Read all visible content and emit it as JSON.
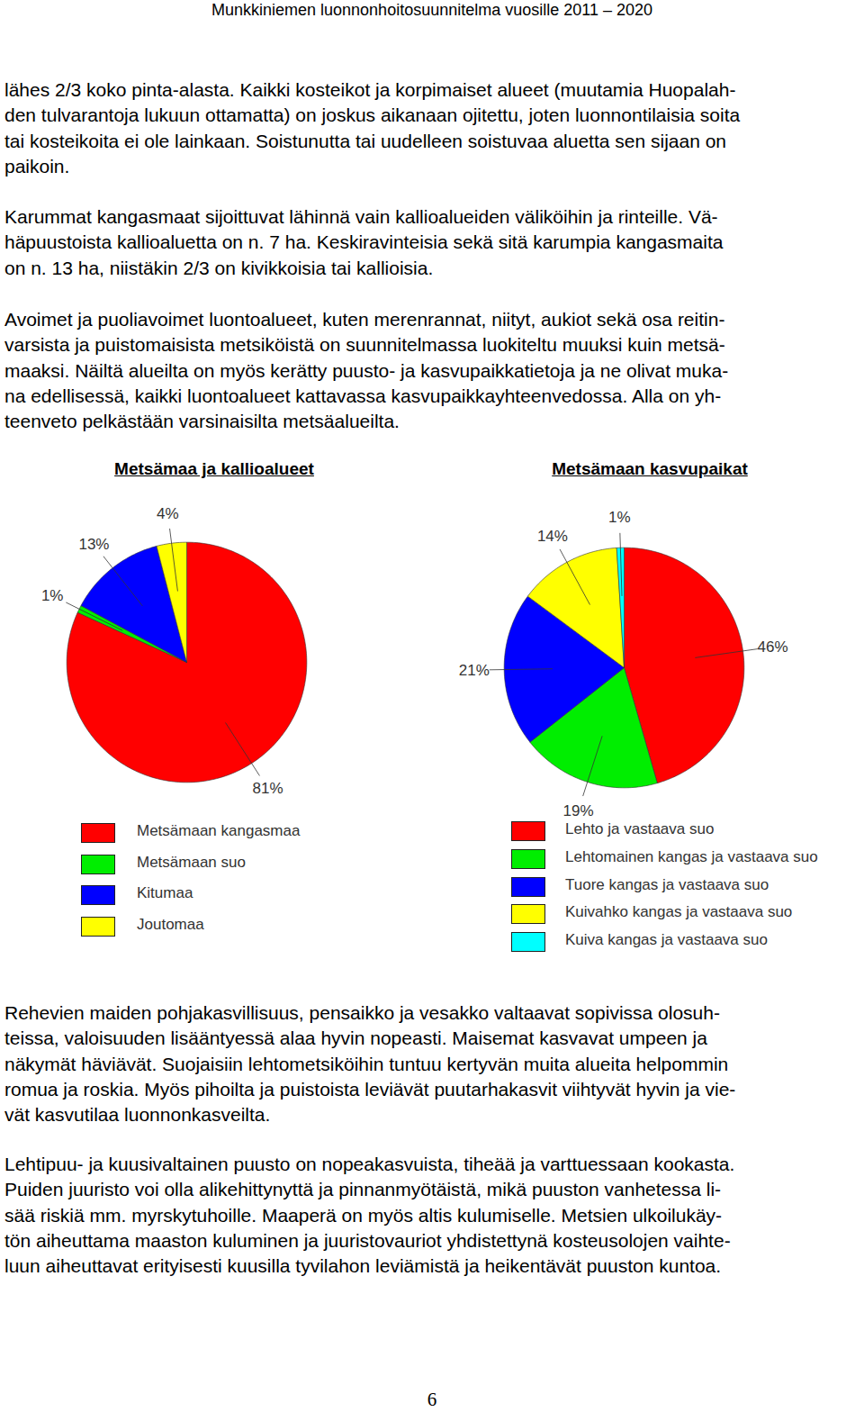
{
  "header": "Munkkiniemen luonnonhoitosuunnitelma vuosille 2011 – 2020",
  "body_top": [
    [
      "lähes 2/3 koko pinta-alasta. Kaikki kosteikot ja korpimaiset alueet (muutamia Huopalah-",
      "den tulvarantoja lukuun ottamatta) on joskus aikanaan ojitettu, joten luonnontilaisia soita",
      "tai kosteikoita ei ole lainkaan. Soistunutta tai uudelleen soistuvaa aluetta sen sijaan on",
      "paikoin."
    ],
    [
      "Karummat kangasmaat sijoittuvat lähinnä vain kallioalueiden väliköihin ja rinteille. Vä-",
      "häpuustoista kallioaluetta on n. 7 ha. Keskiravinteisia sekä sitä karumpia kangasmaita",
      "on n. 13 ha, niistäkin 2/3 on kivikkoisia tai kallioisia."
    ],
    [
      "Avoimet ja puoliavoimet luontoalueet, kuten merenrannat, niityt, aukiot sekä osa reitin-",
      "varsista ja puistomaisista metsiköistä on suunnitelmassa luokiteltu muuksi kuin metsä-",
      "maaksi. Näiltä alueilta on myös kerätty puusto- ja kasvupaikkatietoja ja ne olivat muka-",
      "na edellisessä, kaikki luontoalueet kattavassa kasvupaikkayhteenvedossa. Alla on yh-",
      "teenveto pelkästään varsinaisilta metsäalueilta."
    ]
  ],
  "chart_data": [
    {
      "type": "pie",
      "title": "Metsämaa ja kallioalueet",
      "categories": [
        "Metsämaan kangasmaa",
        "Metsämaan suo",
        "Kitumaa",
        "Joutomaa"
      ],
      "values": [
        81,
        1,
        13,
        4
      ],
      "value_labels": [
        "81%",
        "1%",
        "13%",
        "4%"
      ],
      "colors": [
        "#ff0000",
        "#00ee00",
        "#0000ff",
        "#ffff00"
      ],
      "data_labels": true,
      "legend": "bottom"
    },
    {
      "type": "pie",
      "title": "Metsämaan kasvupaikat",
      "categories": [
        "Lehto ja vastaava suo",
        "Lehtomainen kangas ja vastaava suo",
        "Tuore kangas ja vastaava suo",
        "Kuivahko kangas ja vastaava suo",
        "Kuiva kangas ja vastaava suo"
      ],
      "values": [
        46,
        19,
        21,
        14,
        1
      ],
      "value_labels": [
        "46%",
        "19%",
        "21%",
        "14%",
        "1%"
      ],
      "colors": [
        "#ff0000",
        "#00ee00",
        "#0000ff",
        "#ffff00",
        "#00ffff"
      ],
      "data_labels": true,
      "legend": "bottom"
    }
  ],
  "body_bottom": [
    [
      "Rehevien maiden pohjakasvillisuus, pensaikko ja vesakko valtaavat sopivissa olosuh-",
      "teissa, valoisuuden lisääntyessä alaa hyvin nopeasti. Maisemat kasvavat umpeen ja",
      "näkymät häviävät. Suojaisiin lehtometsiköihin tuntuu kertyvän muita alueita helpommin",
      "romua ja roskia. Myös pihoilta ja puistoista leviävät puutarhakasvit viihtyvät hyvin ja vie-",
      "vät kasvutilaa luonnonkasveilta."
    ],
    [
      "Lehtipuu- ja kuusivaltainen puusto on nopeakasvuista, tiheää ja varttuessaan kookasta.",
      "Puiden juuristo voi olla alikehittynyttä ja pinnanmyötäistä, mikä puuston vanhetessa li-",
      "sää riskiä mm. myrskytuhoille. Maaperä on myös altis kulumiselle. Metsien ulkoilukäy-",
      "tön aiheuttama maaston kuluminen ja juuristovauriot yhdistettynä kosteusolojen vaihte-",
      "luun aiheuttavat erityisesti kuusilla tyvilahon leviämistä ja heikentävät puuston kuntoa."
    ]
  ],
  "page_number": "6"
}
